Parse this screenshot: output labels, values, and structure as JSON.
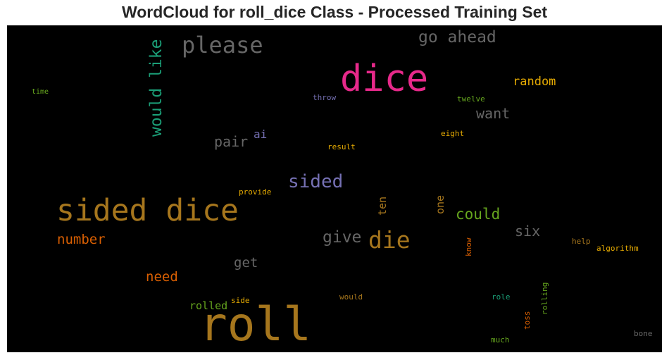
{
  "title": "WordCloud for roll_dice Class - Processed Training Set",
  "words": {
    "dice": {
      "text": "dice",
      "color": "#e7298a"
    },
    "roll": {
      "text": "roll",
      "color": "#a6761d"
    },
    "sided_dice": {
      "text": "sided dice",
      "color": "#a6761d"
    },
    "please": {
      "text": "please",
      "color": "#666666"
    },
    "would_like": {
      "text": "would like",
      "color": "#1b9e77"
    },
    "go_ahead": {
      "text": "go ahead",
      "color": "#666666"
    },
    "random": {
      "text": "random",
      "color": "#e6ab02"
    },
    "want": {
      "text": "want",
      "color": "#666666"
    },
    "sided": {
      "text": "sided",
      "color": "#7570b3"
    },
    "die": {
      "text": "die",
      "color": "#a6761d"
    },
    "could": {
      "text": "could",
      "color": "#66a61e"
    },
    "give": {
      "text": "give",
      "color": "#666666"
    },
    "six": {
      "text": "six",
      "color": "#666666"
    },
    "pair": {
      "text": "pair",
      "color": "#666666"
    },
    "ai": {
      "text": "ai",
      "color": "#7570b3"
    },
    "number": {
      "text": "number",
      "color": "#d95f02"
    },
    "need": {
      "text": "need",
      "color": "#d95f02"
    },
    "get": {
      "text": "get",
      "color": "#666666"
    },
    "rolled": {
      "text": "rolled",
      "color": "#66a61e"
    },
    "time": {
      "text": "time",
      "color": "#66a61e"
    },
    "throw": {
      "text": "throw",
      "color": "#7570b3"
    },
    "twelve": {
      "text": "twelve",
      "color": "#66a61e"
    },
    "eight": {
      "text": "eight",
      "color": "#e6ab02"
    },
    "result": {
      "text": "result",
      "color": "#e6ab02"
    },
    "provide": {
      "text": "provide",
      "color": "#e6ab02"
    },
    "help": {
      "text": "help",
      "color": "#a6761d"
    },
    "algorithm": {
      "text": "algorithm",
      "color": "#e6ab02"
    },
    "side": {
      "text": "side",
      "color": "#e6ab02"
    },
    "would": {
      "text": "would",
      "color": "#a6761d"
    },
    "role": {
      "text": "role",
      "color": "#1b9e77"
    },
    "much": {
      "text": "much",
      "color": "#66a61e"
    },
    "bone": {
      "text": "bone",
      "color": "#666666"
    },
    "ten": {
      "text": "ten",
      "color": "#a6761d"
    },
    "one": {
      "text": "one",
      "color": "#a6761d"
    },
    "know": {
      "text": "know",
      "color": "#d95f02"
    },
    "toss": {
      "text": "toss",
      "color": "#d95f02"
    },
    "rolling": {
      "text": "rolling",
      "color": "#66a61e"
    }
  }
}
